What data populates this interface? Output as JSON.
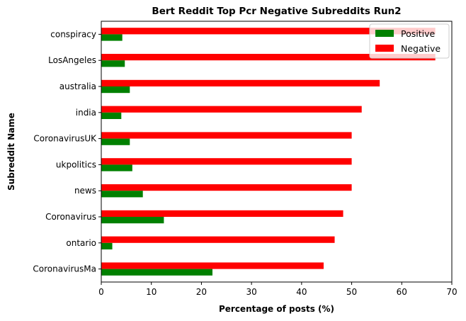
{
  "chart_data": {
    "type": "bar",
    "orientation": "horizontal",
    "title": "Bert Reddit Top Pcr Negative Subreddits Run2",
    "xlabel": "Percentage of posts (%)",
    "ylabel": "Subreddit Name",
    "xlim": [
      0,
      70
    ],
    "xticks": [
      0,
      10,
      20,
      30,
      40,
      50,
      60,
      70
    ],
    "categories": [
      "conspiracy",
      "LosAngeles",
      "australia",
      "india",
      "CoronavirusUK",
      "ukpolitics",
      "news",
      "Coronavirus",
      "ontario",
      "CoronavirusMa"
    ],
    "series": [
      {
        "name": "Positive",
        "color": "#008000",
        "values": [
          4.2,
          4.7,
          5.7,
          4.0,
          5.7,
          6.2,
          8.3,
          12.5,
          2.2,
          22.2
        ]
      },
      {
        "name": "Negative",
        "color": "#ff0000",
        "values": [
          66.7,
          66.7,
          55.6,
          52.0,
          50.0,
          50.0,
          50.0,
          48.3,
          46.6,
          44.4
        ]
      }
    ],
    "legend_position": "top-right",
    "grid": false
  }
}
